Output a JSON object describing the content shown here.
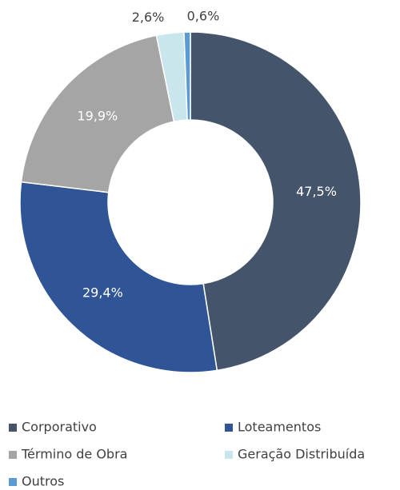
{
  "chart_data": {
    "type": "donut",
    "categories": [
      "Corporativo",
      "Loteamentos",
      "Término de Obra",
      "Geração Distribuída",
      "Outros"
    ],
    "values": [
      47.5,
      29.4,
      19.9,
      2.6,
      0.6
    ],
    "value_labels": [
      "47,5%",
      "29,4%",
      "19,9%",
      "2,6%",
      "0,6%"
    ],
    "colors": [
      "#44546a",
      "#2f5597",
      "#a5a5a5",
      "#c9e6ec",
      "#5b9bd5"
    ],
    "legend": "bottom"
  }
}
